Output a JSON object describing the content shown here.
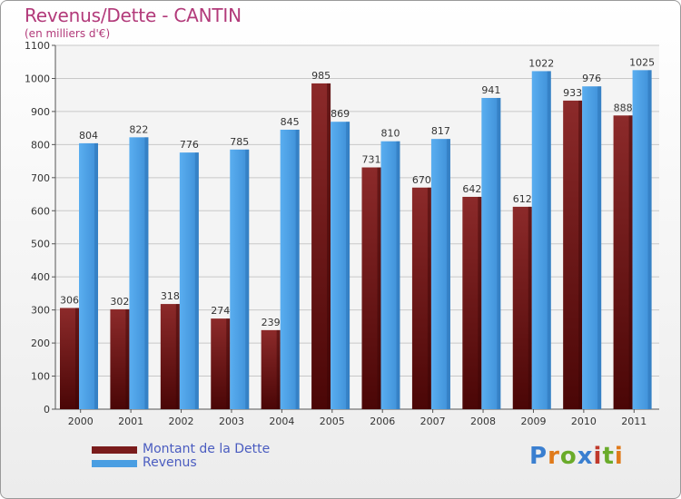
{
  "header": {
    "title": "Revenus/Dette - CANTIN",
    "subtitle": "(en milliers d'€)"
  },
  "legend": {
    "items": [
      {
        "label": "Montant de la Dette",
        "color": "#7a1c1c"
      },
      {
        "label": "Revenus",
        "color": "#4a9ee2"
      }
    ]
  },
  "logo": {
    "text": "Proxiti",
    "letter_colors": [
      "#3a7fd0",
      "#e07a1a",
      "#6aab2a",
      "#3a7fd0",
      "#c0392b",
      "#6aab2a",
      "#e07a1a"
    ]
  },
  "chart_data": {
    "type": "bar",
    "categories": [
      "2000",
      "2001",
      "2002",
      "2003",
      "2004",
      "2005",
      "2006",
      "2007",
      "2008",
      "2009",
      "2010",
      "2011"
    ],
    "series": [
      {
        "name": "Montant de la Dette",
        "color": "#7a1c1c",
        "values": [
          306,
          302,
          318,
          274,
          239,
          985,
          731,
          670,
          642,
          612,
          933,
          888
        ]
      },
      {
        "name": "Revenus",
        "color": "#4a9ee2",
        "values": [
          804,
          822,
          776,
          785,
          845,
          869,
          810,
          817,
          941,
          1022,
          976,
          1025
        ]
      }
    ],
    "ylim": [
      0,
      1100
    ],
    "yticks": [
      0,
      100,
      200,
      300,
      400,
      500,
      600,
      700,
      800,
      900,
      1000,
      1100
    ],
    "grid": true,
    "legend_position": "bottom-left"
  }
}
